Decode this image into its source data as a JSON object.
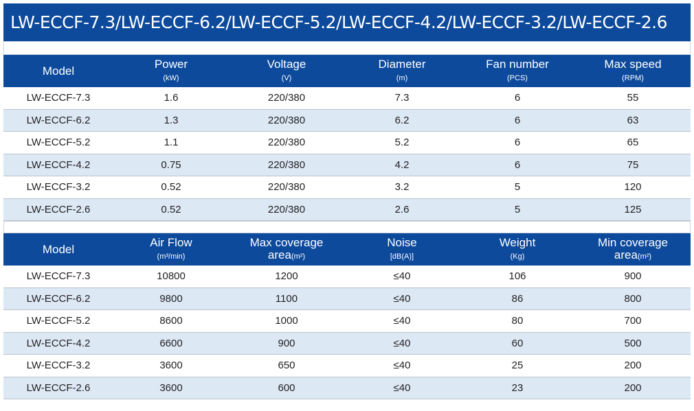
{
  "title": "LW-ECCF-7.3/LW-ECCF-6.2/LW-ECCF-5.2/LW-ECCF-4.2/LW-ECCF-3.2/LW-ECCF-2.6",
  "tables": [
    {
      "header": [
        {
          "label": "Model"
        },
        {
          "label": "Power",
          "unit": "(kW)"
        },
        {
          "label": "Voltage",
          "unit": "(V)"
        },
        {
          "label": "Diameter",
          "unit": "(m)"
        },
        {
          "label": "Fan number",
          "unit": "(PCS)"
        },
        {
          "label": "Max speed",
          "unit": "(RPM)"
        }
      ],
      "rows": [
        [
          "LW-ECCF-7.3",
          "1.6",
          "220/380",
          "7.3",
          "6",
          "55"
        ],
        [
          "LW-ECCF-6.2",
          "1.3",
          "220/380",
          "6.2",
          "6",
          "63"
        ],
        [
          "LW-ECCF-5.2",
          "1.1",
          "220/380",
          "5.2",
          "6",
          "65"
        ],
        [
          "LW-ECCF-4.2",
          "0.75",
          "220/380",
          "4.2",
          "6",
          "75"
        ],
        [
          "LW-ECCF-3.2",
          "0.52",
          "220/380",
          "3.2",
          "5",
          "120"
        ],
        [
          "LW-ECCF-2.6",
          "0.52",
          "220/380",
          "2.6",
          "5",
          "125"
        ]
      ]
    },
    {
      "header": [
        {
          "label": "Model"
        },
        {
          "label": "Air Flow",
          "unit": "(m³/min)"
        },
        {
          "label": "Max coverage",
          "label2": "area",
          "unit": "(m²)"
        },
        {
          "label": "Noise",
          "unit": "[dB(A)]"
        },
        {
          "label": "Weight",
          "unit": "(Kg)"
        },
        {
          "label": "Min coverage",
          "label2": "area",
          "unit": "(m²)"
        }
      ],
      "rows": [
        [
          "LW-ECCF-7.3",
          "10800",
          "1200",
          "≤40",
          "106",
          "900"
        ],
        [
          "LW-ECCF-6.2",
          "9800",
          "1100",
          "≤40",
          "86",
          "800"
        ],
        [
          "LW-ECCF-5.2",
          "8600",
          "1000",
          "≤40",
          "80",
          "700"
        ],
        [
          "LW-ECCF-4.2",
          "6600",
          "900",
          "≤40",
          "60",
          "500"
        ],
        [
          "LW-ECCF-3.2",
          "3600",
          "650",
          "≤40",
          "25",
          "200"
        ],
        [
          "LW-ECCF-2.6",
          "3600",
          "600",
          "≤40",
          "23",
          "200"
        ]
      ]
    }
  ]
}
